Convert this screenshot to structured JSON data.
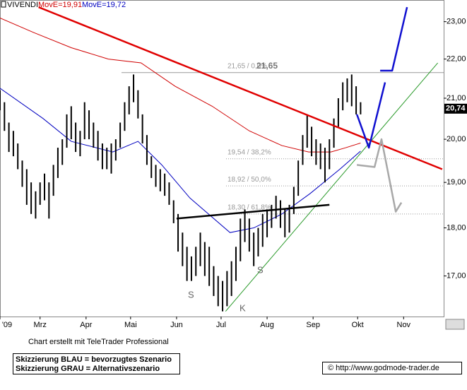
{
  "chart_data": {
    "type": "hilo",
    "title": "VIVENDI",
    "log_scale": true,
    "xlim": [
      32,
      331
    ],
    "ylim": [
      16.2,
      23.6
    ],
    "xticks": [
      {
        "value": 32,
        "label": "'09"
      },
      {
        "value": 59,
        "label": "Mrz"
      },
      {
        "value": 90,
        "label": "Apr"
      },
      {
        "value": 120,
        "label": "Mai"
      },
      {
        "value": 151,
        "label": "Jun"
      },
      {
        "value": 181,
        "label": "Jul"
      },
      {
        "value": 212,
        "label": "Aug"
      },
      {
        "value": 243,
        "label": "Sep"
      },
      {
        "value": 273,
        "label": "Okt"
      },
      {
        "value": 304,
        "label": "Nov"
      }
    ],
    "yticks": [
      {
        "value": 17,
        "label": "17,00"
      },
      {
        "value": 18,
        "label": "18,00"
      },
      {
        "value": 19,
        "label": "19,00"
      },
      {
        "value": 20,
        "label": "20,00"
      },
      {
        "value": 21,
        "label": "21,00"
      },
      {
        "value": 22,
        "label": "22,00"
      },
      {
        "value": 23,
        "label": "23,00"
      }
    ],
    "bars": {
      "color": "#000000",
      "x": [
        32,
        35,
        38,
        41,
        44,
        47,
        50,
        53,
        56,
        59,
        62,
        65,
        68,
        71,
        74,
        77,
        80,
        83,
        86,
        89,
        92,
        95,
        98,
        101,
        104,
        107,
        110,
        113,
        116,
        119,
        122,
        125,
        128,
        131,
        134,
        137,
        140,
        143,
        146,
        149,
        152,
        155,
        158,
        161,
        164,
        167,
        170,
        173,
        176,
        179,
        182,
        185,
        188,
        191,
        194,
        197,
        200,
        203,
        206,
        209,
        212,
        215,
        218,
        221,
        224,
        227,
        230,
        233,
        236,
        239,
        242,
        245,
        248,
        251,
        254,
        257,
        260,
        263,
        266,
        269,
        272,
        275
      ],
      "high": [
        21.2,
        20.9,
        20.4,
        20.2,
        19.9,
        19.5,
        19.3,
        19.0,
        18.8,
        19.0,
        19.2,
        19.0,
        19.4,
        19.8,
        20.0,
        20.6,
        20.8,
        20.4,
        20.2,
        20.9,
        20.7,
        20.4,
        20.2,
        19.9,
        19.8,
        19.9,
        20.0,
        20.4,
        20.9,
        21.3,
        21.6,
        21.2,
        20.6,
        20.1,
        19.6,
        19.4,
        19.3,
        19.2,
        19.0,
        18.6,
        18.3,
        17.9,
        17.6,
        17.4,
        17.6,
        17.9,
        17.7,
        17.6,
        17.2,
        17.0,
        16.9,
        17.1,
        17.3,
        17.6,
        18.2,
        18.4,
        18.2,
        17.9,
        18.0,
        18.3,
        18.4,
        18.5,
        18.7,
        18.6,
        18.4,
        18.5,
        18.9,
        19.5,
        20.1,
        20.6,
        20.3,
        20.0,
        19.9,
        19.8,
        20.0,
        20.5,
        21.0,
        21.4,
        21.5,
        21.6,
        21.3,
        20.9
      ],
      "low": [
        20.7,
        20.2,
        19.7,
        19.6,
        19.3,
        18.9,
        18.5,
        18.3,
        18.2,
        18.5,
        18.6,
        18.2,
        18.7,
        19.1,
        19.4,
        19.8,
        20.0,
        19.7,
        19.6,
        20.0,
        20.0,
        19.8,
        19.5,
        19.3,
        19.3,
        19.2,
        19.5,
        19.8,
        20.2,
        20.6,
        20.9,
        20.5,
        19.9,
        19.4,
        19.1,
        18.9,
        18.8,
        18.7,
        18.5,
        18.1,
        17.5,
        17.2,
        16.9,
        16.9,
        17.0,
        17.2,
        17.0,
        16.8,
        16.6,
        16.4,
        16.3,
        16.4,
        16.6,
        16.9,
        17.3,
        17.7,
        17.5,
        17.2,
        17.4,
        17.6,
        17.8,
        18.0,
        18.2,
        18.0,
        17.8,
        17.9,
        18.3,
        18.7,
        19.4,
        19.8,
        19.6,
        19.4,
        19.3,
        19.0,
        19.3,
        19.8,
        20.3,
        20.7,
        20.9,
        20.8,
        20.6,
        20.6
      ]
    },
    "series": [
      {
        "name": "MovE=19,91",
        "color": "#d00000",
        "x": [
          32,
          55,
          80,
          105,
          127,
          150,
          175,
          200,
          222,
          240,
          255,
          265,
          275
        ],
        "values": [
          23.1,
          22.7,
          22.3,
          22.0,
          21.9,
          21.3,
          20.8,
          20.2,
          19.85,
          19.7,
          19.7,
          19.8,
          19.91
        ]
      },
      {
        "name": "MovE=19,72",
        "color": "#0000c0",
        "x": [
          32,
          61,
          80,
          108,
          125,
          141,
          160,
          187,
          203,
          222,
          241,
          261,
          275
        ],
        "values": [
          21.25,
          20.5,
          19.95,
          19.7,
          19.95,
          19.4,
          18.65,
          17.9,
          18.0,
          18.3,
          18.75,
          19.3,
          19.72
        ]
      }
    ],
    "last": {
      "value": 20.74,
      "label": "20,74"
    },
    "levels": [
      {
        "value": 21.65,
        "label": "21,65 / 0,0%"
      },
      {
        "value": 19.54,
        "label": "19,54 / 38,2%"
      },
      {
        "value": 18.92,
        "label": "18,92 / 50,0%"
      },
      {
        "value": 18.3,
        "label": "18,30 / 61,8%"
      }
    ],
    "level_value": "21,65",
    "drawings": [
      {
        "color": "#e00000",
        "points": [
          [
            58,
            23.4
          ],
          [
            330,
            19.3
          ]
        ]
      },
      {
        "color": "#2a9a2a",
        "points": [
          [
            184,
            16.3
          ],
          [
            327,
            21.9
          ]
        ]
      },
      {
        "color": "#000000",
        "points": [
          [
            151,
            18.2
          ],
          [
            254,
            18.5
          ]
        ]
      },
      {
        "color": "#1010d0",
        "points": [
          [
            272.5,
            20.6
          ],
          [
            280.6,
            19.8
          ],
          [
            291.5,
            21.4
          ]
        ]
      },
      {
        "color": "#1010d0",
        "points": [
          [
            288.2,
            21.7
          ],
          [
            296.3,
            21.7
          ],
          [
            306.3,
            23.4
          ]
        ]
      },
      {
        "color": "#a8a8a8",
        "points": [
          [
            272.5,
            19.4
          ],
          [
            284.4,
            19.35
          ],
          [
            289.1,
            20.0
          ],
          [
            298.7,
            18.35
          ],
          [
            302.5,
            18.55
          ]
        ]
      }
    ],
    "marks": [
      "S",
      "S",
      "K"
    ],
    "credit": "Chart erstellt mit TeleTrader Professional",
    "legend_lines": [
      "Skizzierung BLAU = bevorzugtes Szenario",
      "Skizzierung GRAU = Alternativszenario"
    ],
    "source": "© http://www.godmode-trader.de"
  }
}
